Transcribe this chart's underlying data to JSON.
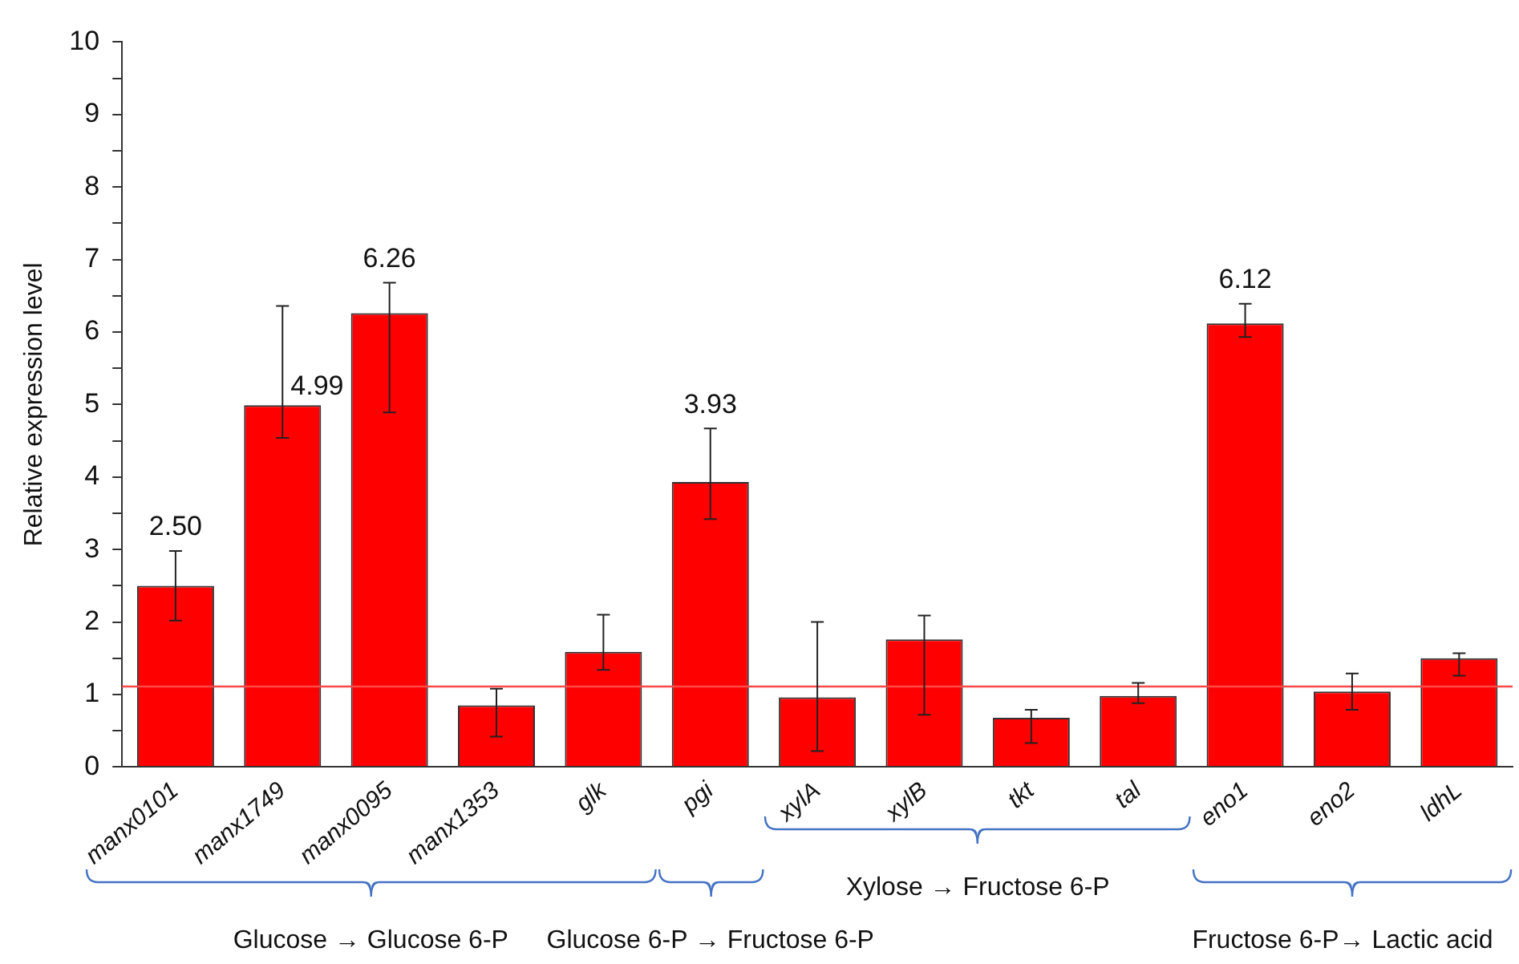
{
  "chart_data": {
    "type": "bar",
    "ylabel": "Relative expression level",
    "categories": [
      "manx0101",
      "manx1749",
      "manx0095",
      "manx1353",
      "glk",
      "pgi",
      "xylA",
      "xylB",
      "tkt",
      "tal",
      "eno1",
      "eno2",
      "ldhL"
    ],
    "values": [
      2.5,
      4.99,
      6.26,
      0.85,
      1.59,
      3.93,
      0.96,
      1.76,
      0.68,
      0.98,
      6.12,
      1.04,
      1.5
    ],
    "errors": [
      0.48,
      [
        4.54,
        6.36
      ],
      [
        4.89,
        6.68
      ],
      [
        0.42,
        1.08
      ],
      [
        1.34,
        2.1
      ],
      [
        3.42,
        4.67
      ],
      [
        0.22,
        2.0
      ],
      [
        0.72,
        2.09
      ],
      [
        0.33,
        0.79
      ],
      [
        0.88,
        1.16
      ],
      [
        5.93,
        6.39
      ],
      [
        0.79,
        1.29
      ],
      [
        1.26,
        1.57
      ]
    ],
    "value_labels": [
      "2.50",
      "4.99",
      "6.26",
      null,
      null,
      "3.93",
      null,
      null,
      null,
      null,
      "6.12",
      null,
      null
    ],
    "color": "#ff0000",
    "ylim": [
      0,
      10
    ],
    "yticks": [
      0,
      {
        "value": 0.5,
        "label": null
      },
      1,
      {
        "value": 1.5,
        "label": null
      },
      2,
      {
        "value": 2.5,
        "label": null
      },
      3,
      {
        "value": 3.5,
        "label": null
      },
      4,
      {
        "value": 4.5,
        "label": null
      },
      5,
      {
        "value": 5.5,
        "label": null
      },
      6,
      {
        "value": 6.5,
        "label": null
      },
      7,
      {
        "value": 7.5,
        "label": null
      },
      8,
      {
        "value": 8.5,
        "label": null
      },
      9,
      {
        "value": 9.5,
        "label": null
      },
      10
    ],
    "ref_lines": [
      {
        "axis": "y",
        "value": 1.11,
        "label": null,
        "color": "#ff4a4a"
      }
    ],
    "grid": false,
    "legend": false,
    "annotations": [
      "Glucose → Glucose 6-P",
      "Glucose 6-P → Fructose 6-P",
      "Xylose →  Fructose 6-P",
      "Fructose 6-P→ Lactic acid"
    ]
  }
}
